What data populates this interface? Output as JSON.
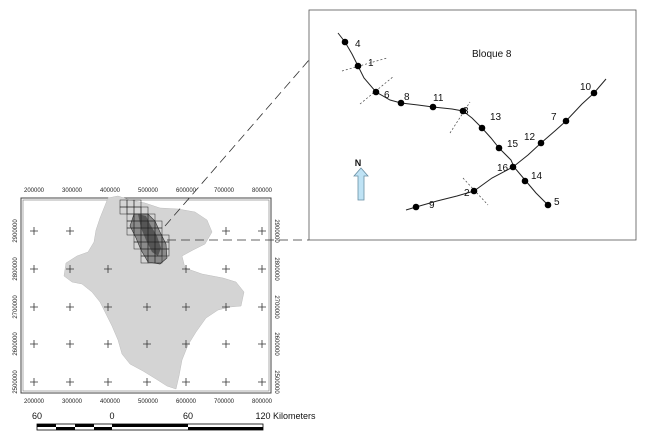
{
  "map": {
    "x_ticks": [
      "200000",
      "300000",
      "400000",
      "500000",
      "600000",
      "700000",
      "800000"
    ],
    "y_ticks": [
      "2900000",
      "2800000",
      "2700000",
      "2600000",
      "2500000"
    ],
    "colors": {
      "region": "#d4d4d4",
      "block_cells": "#8a8a8a",
      "block_dark": "#555555",
      "frame": "#444444"
    }
  },
  "inset": {
    "title": "Bloque 8",
    "north_label": "N",
    "north_arrow_color": "#bfe3f5",
    "points": [
      {
        "label": "4"
      },
      {
        "label": "1"
      },
      {
        "label": "6"
      },
      {
        "label": "8"
      },
      {
        "label": "11"
      },
      {
        "label": "3"
      },
      {
        "label": "13"
      },
      {
        "label": "15"
      },
      {
        "label": "16"
      },
      {
        "label": "12"
      },
      {
        "label": "7"
      },
      {
        "label": "10"
      },
      {
        "label": "14"
      },
      {
        "label": "5"
      },
      {
        "label": "2"
      },
      {
        "label": "9"
      }
    ]
  },
  "scale_bar": {
    "labels": [
      "60",
      "0",
      "60",
      "120"
    ],
    "unit": "Kilometers"
  }
}
